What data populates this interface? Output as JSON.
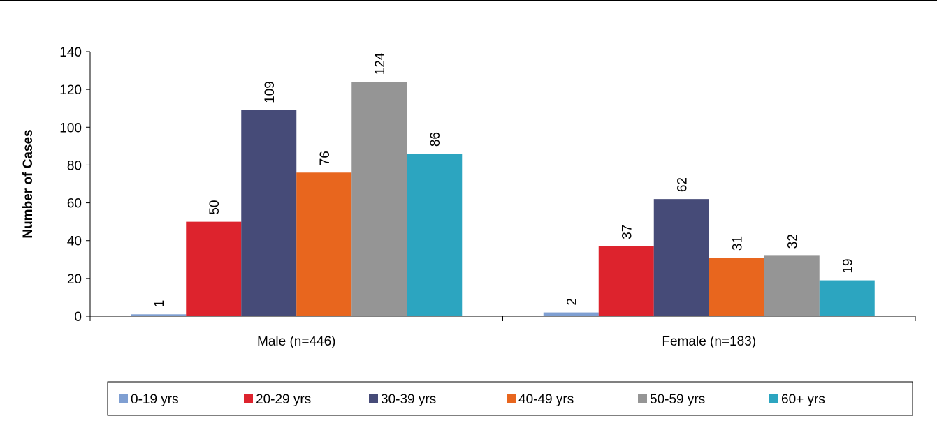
{
  "chart_data": {
    "type": "bar",
    "categories": [
      "Male (n=446)",
      "Female (n=183)"
    ],
    "series": [
      {
        "name": "0-19 yrs",
        "values": [
          1,
          2
        ],
        "color": "#7F9FD2"
      },
      {
        "name": "20-29 yrs",
        "values": [
          50,
          37
        ],
        "color": "#DD232D"
      },
      {
        "name": "30-39 yrs",
        "values": [
          109,
          62
        ],
        "color": "#464B78"
      },
      {
        "name": "40-49 yrs",
        "values": [
          76,
          31
        ],
        "color": "#E8661E"
      },
      {
        "name": "50-59 yrs",
        "values": [
          124,
          32
        ],
        "color": "#959595"
      },
      {
        "name": "60+ yrs",
        "values": [
          86,
          19
        ],
        "color": "#2CA5C0"
      }
    ],
    "title": "",
    "xlabel": "",
    "ylabel": "Number of Cases",
    "ylim": [
      0,
      140
    ],
    "yticks": [
      0,
      20,
      40,
      60,
      80,
      100,
      120,
      140
    ],
    "grid": false,
    "legend": "bottom",
    "data_labels": true,
    "data_label_rotation": "vertical"
  }
}
